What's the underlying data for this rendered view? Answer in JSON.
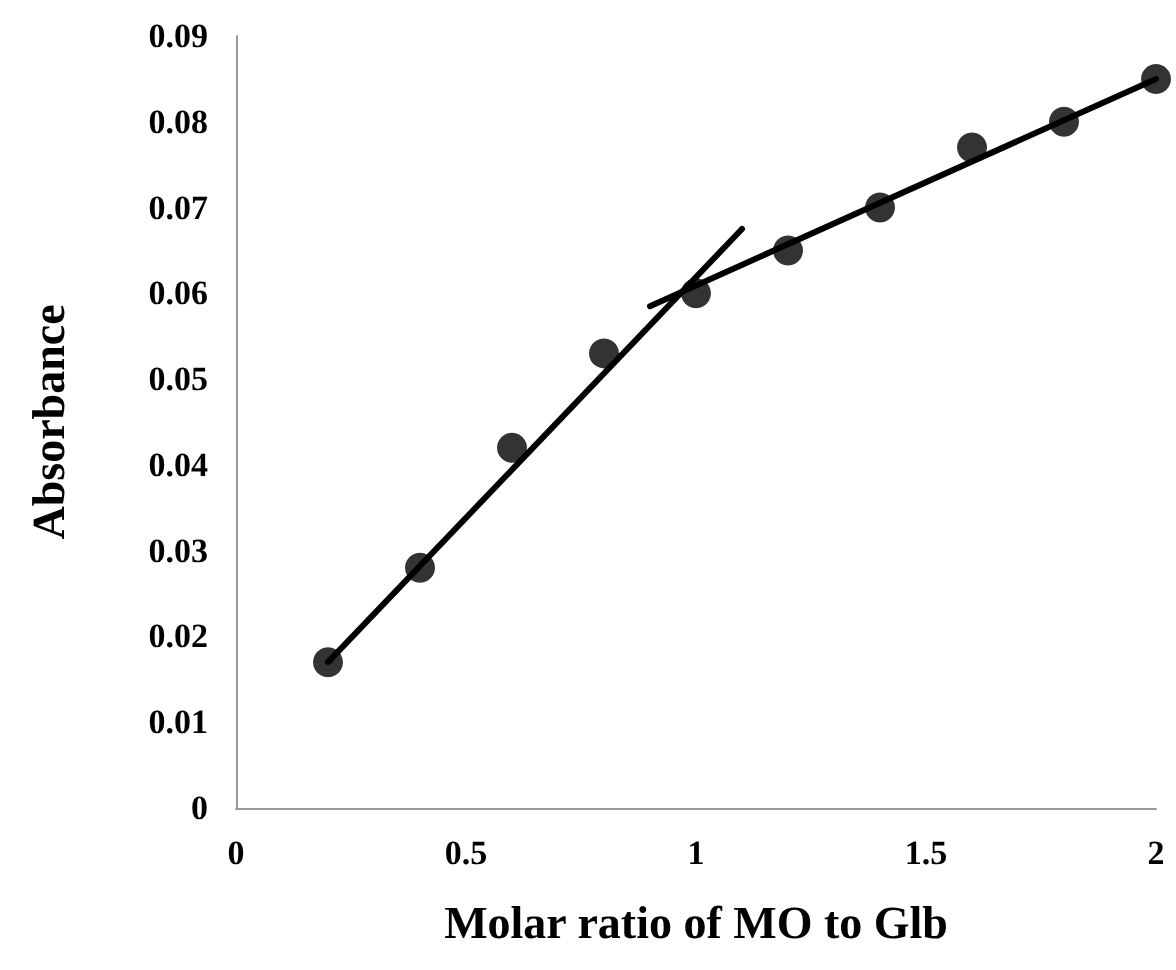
{
  "chart_data": {
    "type": "scatter",
    "xlabel": "Molar ratio of MO to Glb",
    "ylabel": "Absorbance",
    "xlim": [
      0,
      2
    ],
    "xticks": [
      0,
      0.5,
      1,
      1.5,
      2
    ],
    "ylim": [
      0,
      0.09
    ],
    "yticks": [
      0,
      0.01,
      0.02,
      0.03,
      0.04,
      0.05,
      0.06,
      0.07,
      0.08,
      0.09
    ],
    "grid": false,
    "series": [
      {
        "color": "#000000",
        "marker": "circle",
        "x": [
          0.2,
          0.4,
          0.6,
          0.8,
          1.0,
          1.2,
          1.4,
          1.6,
          1.8,
          2.0
        ],
        "values": [
          0.017,
          0.028,
          0.042,
          0.053,
          0.06,
          0.065,
          0.07,
          0.077,
          0.08,
          0.085
        ]
      },
      {
        "type": "line",
        "color": "#000000",
        "marker": "none",
        "line_style": "solid",
        "x": [
          0.2,
          1.1
        ],
        "values": [
          0.017,
          0.0675
        ]
      },
      {
        "type": "line",
        "color": "#000000",
        "marker": "none",
        "line_style": "solid",
        "x": [
          0.9,
          2.0
        ],
        "values": [
          0.0585,
          0.085
        ]
      }
    ]
  }
}
